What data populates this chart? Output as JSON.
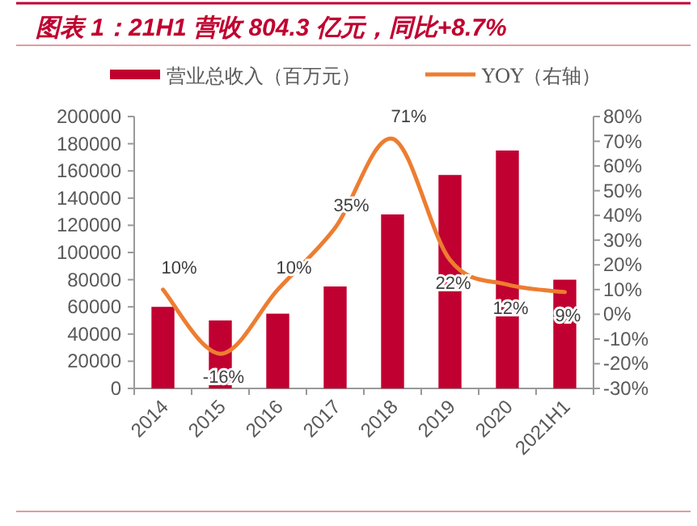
{
  "chart_data": {
    "type": "bar",
    "title": "图表 1：21H1 营收 804.3 亿元，同比+8.7%",
    "categories": [
      "2014",
      "2015",
      "2016",
      "2017",
      "2018",
      "2019",
      "2020",
      "2021H1"
    ],
    "series": [
      {
        "name": "营业总收入（百万元）",
        "color": "#c00030",
        "values": [
          60000,
          50000,
          55000,
          75000,
          128000,
          157000,
          175000,
          80000
        ]
      },
      {
        "name": "YOY（右轴）",
        "type": "line",
        "axis": "y2",
        "color": "#ed7d31",
        "values": [
          10,
          -16,
          10,
          35,
          71,
          22,
          12,
          9
        ],
        "value_labels": [
          "10%",
          "-16%",
          "10%",
          "35%",
          "71%",
          "22%",
          "12%",
          "9%"
        ]
      }
    ],
    "ylim": [
      0,
      200000
    ],
    "yticks": [
      0,
      20000,
      40000,
      60000,
      80000,
      100000,
      120000,
      140000,
      160000,
      180000,
      200000
    ],
    "y2lim": [
      -30,
      80
    ],
    "y2ticks": [
      {
        "value": -30,
        "label": "-30%"
      },
      {
        "value": -20,
        "label": "-20%"
      },
      {
        "value": -10,
        "label": "-10%"
      },
      {
        "value": 0,
        "label": "0%"
      },
      {
        "value": 10,
        "label": "10%"
      },
      {
        "value": 20,
        "label": "20%"
      },
      {
        "value": 30,
        "label": "30%"
      },
      {
        "value": 40,
        "label": "40%"
      },
      {
        "value": 50,
        "label": "50%"
      },
      {
        "value": 60,
        "label": "60%"
      },
      {
        "value": 70,
        "label": "70%"
      },
      {
        "value": 80,
        "label": "80%"
      }
    ],
    "legend": "top",
    "grid": false
  }
}
